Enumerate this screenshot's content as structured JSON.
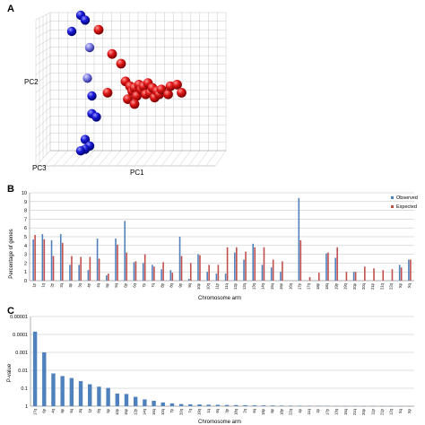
{
  "panels": {
    "a_label": "A",
    "b_label": "B",
    "c_label": "C"
  },
  "colors": {
    "observed": "#4f81bd",
    "expected": "#c0504d",
    "sphere_red": "#dd1111",
    "sphere_blue": "#1515cc",
    "sphere_lightblue": "#7777dd",
    "grid": "#c8c8c8"
  },
  "chart_data": [
    {
      "type": "scatter",
      "panel": "A",
      "xlabel": "PC1",
      "ylabel": "PC2",
      "zlabel": "PC3",
      "grid": true,
      "projection_3d": true,
      "series": [
        {
          "group": "blue",
          "points": [
            [
              2.0,
              8.5
            ],
            [
              2.2,
              8.2
            ],
            [
              1.6,
              7.5
            ],
            [
              2.4,
              6.5
            ],
            [
              2.3,
              4.6
            ],
            [
              2.5,
              3.5
            ],
            [
              2.5,
              2.4
            ],
            [
              2.7,
              2.2
            ],
            [
              2.2,
              0.8
            ],
            [
              2.4,
              0.4
            ],
            [
              2.2,
              0.2
            ],
            [
              2.0,
              0.1
            ]
          ]
        },
        {
          "group": "red",
          "points": [
            [
              2.8,
              7.6
            ],
            [
              3.4,
              6.1
            ],
            [
              3.8,
              5.5
            ],
            [
              4.0,
              4.4
            ],
            [
              4.2,
              4.1
            ],
            [
              4.3,
              3.8
            ],
            [
              4.4,
              4.0
            ],
            [
              4.5,
              3.5
            ],
            [
              4.6,
              4.2
            ],
            [
              4.7,
              3.9
            ],
            [
              4.8,
              4.1
            ],
            [
              4.9,
              3.6
            ],
            [
              5.0,
              4.3
            ],
            [
              5.1,
              3.7
            ],
            [
              5.2,
              4.0
            ],
            [
              5.3,
              3.4
            ],
            [
              5.4,
              3.8
            ],
            [
              5.5,
              3.6
            ],
            [
              5.6,
              3.9
            ],
            [
              5.9,
              3.6
            ],
            [
              6.0,
              4.1
            ],
            [
              6.3,
              4.2
            ],
            [
              6.5,
              3.7
            ],
            [
              3.2,
              3.7
            ],
            [
              4.1,
              3.3
            ],
            [
              4.4,
              3.0
            ]
          ]
        }
      ]
    },
    {
      "type": "bar",
      "panel": "B",
      "xlabel": "Chromosome arm",
      "ylabel": "Percentage of genes",
      "ylim": [
        0,
        10
      ],
      "yticks": [
        0,
        1,
        2,
        3,
        4,
        5,
        6,
        7,
        8,
        9,
        10
      ],
      "grid": true,
      "legend_position": "top-right",
      "categories": [
        "1p",
        "1q",
        "2p",
        "2q",
        "3p",
        "3q",
        "4p",
        "4q",
        "5p",
        "5q",
        "6p",
        "6q",
        "7p",
        "7q",
        "8p",
        "8q",
        "9p",
        "9q",
        "10p",
        "10q",
        "11p",
        "11q",
        "12p",
        "12q",
        "13q",
        "14q",
        "15q",
        "16p",
        "16q",
        "17p",
        "17q",
        "18p",
        "18q",
        "19p",
        "19q",
        "20p",
        "20q",
        "21p",
        "21q",
        "22q",
        "Xp",
        "Xq"
      ],
      "series": [
        {
          "name": "Observed",
          "values": [
            4.7,
            5.3,
            4.6,
            5.3,
            1.8,
            1.8,
            1.2,
            4.8,
            0.6,
            4.8,
            6.8,
            2.1,
            2.0,
            1.8,
            1.3,
            1.2,
            5.0,
            0.2,
            3.0,
            1.0,
            0.8,
            0.8,
            3.2,
            2.4,
            4.2,
            1.8,
            1.5,
            1.0,
            0,
            9.4,
            0,
            0,
            3.1,
            2.6,
            0,
            1.0,
            0,
            0,
            0,
            0,
            1.8,
            2.4
          ]
        },
        {
          "name": "Expected",
          "values": [
            5.2,
            4.7,
            2.8,
            4.3,
            2.8,
            2.7,
            2.7,
            2.5,
            0.8,
            4.1,
            3.2,
            2.2,
            3.0,
            1.6,
            2.1,
            0.9,
            2.8,
            2.0,
            2.9,
            1.8,
            1.8,
            3.8,
            3.8,
            3.3,
            3.8,
            3.8,
            2.4,
            2.2,
            0,
            4.6,
            0.4,
            0.9,
            3.2,
            3.8,
            1.0,
            1.0,
            1.6,
            1.4,
            1.2,
            1.3,
            1.5,
            2.4
          ]
        }
      ]
    },
    {
      "type": "bar",
      "panel": "C",
      "xlabel": "Chromosome arm",
      "ylabel": "P-value",
      "yscale": "log",
      "yaxis_inverted": true,
      "ytick_labels": [
        "0.00001",
        "0.0001",
        "0.001",
        "0.01",
        "0.1",
        "1"
      ],
      "ylim": [
        1,
        1e-05
      ],
      "grid": true,
      "categories": [
        "17q",
        "6p",
        "4q",
        "9p",
        "5q",
        "3q",
        "1p",
        "8q",
        "5p",
        "10p",
        "16p",
        "12p",
        "14q",
        "16q",
        "10q",
        "7p",
        "20q",
        "7q",
        "19q",
        "1q",
        "9q",
        "3p",
        "18q",
        "2q",
        "6q",
        "19p",
        "8p",
        "18p",
        "22q",
        "4p",
        "11q",
        "2p",
        "17p",
        "13q",
        "15q",
        "21q",
        "20p",
        "11p",
        "21p",
        "12q",
        "Xq",
        "Xp"
      ],
      "values": [
        7e-05,
        0.001,
        0.015,
        0.021,
        0.027,
        0.04,
        0.06,
        0.082,
        0.096,
        0.2,
        0.21,
        0.3,
        0.42,
        0.5,
        0.62,
        0.7,
        0.76,
        0.79,
        0.8,
        0.83,
        0.84,
        0.86,
        0.87,
        0.88,
        0.9,
        0.91,
        0.92,
        0.93,
        0.94,
        0.95,
        0.96,
        0.96,
        0.97,
        0.97,
        0.98,
        0.98,
        0.99,
        0.99,
        0.99,
        0.995,
        0.995,
        0.998
      ]
    }
  ]
}
